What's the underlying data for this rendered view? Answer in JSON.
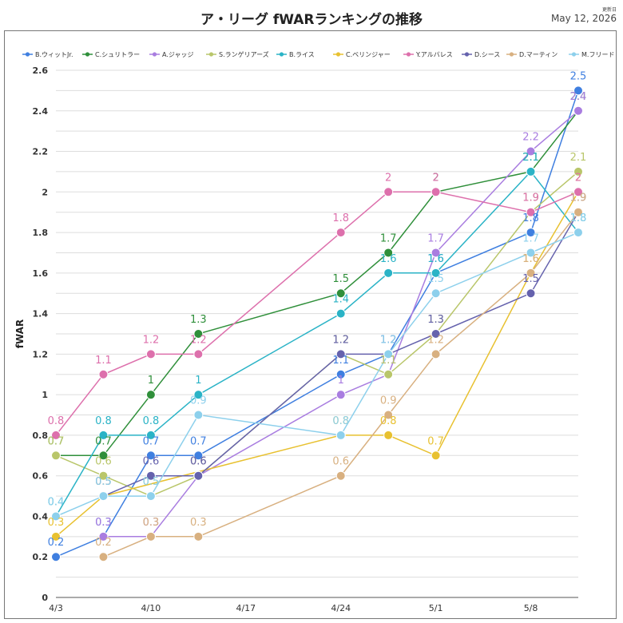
{
  "header": {
    "title": "ア・リーグ fWARランキングの推移",
    "updated_label": "更新日",
    "updated_date": "May 12, 2026"
  },
  "chart_data": {
    "type": "line",
    "title": "ア・リーグ fWARランキングの推移",
    "xlabel": "",
    "ylabel": "fWAR",
    "x": [
      "4/3",
      "4/6",
      "4/10",
      "4/13",
      "4/17",
      "4/20",
      "4/24",
      "4/27",
      "5/1",
      "5/4",
      "5/8",
      "5/11"
    ],
    "x_tick_labels": [
      "4/3",
      "4/10",
      "4/17",
      "4/24",
      "5/1",
      "5/8"
    ],
    "y_ticks": [
      0,
      0.2,
      0.4,
      0.6,
      0.8,
      1,
      1.2,
      1.4,
      1.6,
      1.8,
      2,
      2.2,
      2.4,
      2.6
    ],
    "ylim": [
      0,
      2.6
    ],
    "grid": true,
    "legend_position": "top",
    "series": [
      {
        "name": "B.ウィットJr.",
        "color": "#3f7fe0",
        "values": [
          0.2,
          0.3,
          0.7,
          0.7,
          null,
          null,
          1.1,
          1.2,
          1.6,
          null,
          1.8,
          2.5
        ]
      },
      {
        "name": "C.シュリトラー",
        "color": "#2f8f3a",
        "values": [
          0.7,
          0.7,
          1,
          1.3,
          null,
          null,
          1.5,
          1.7,
          2,
          null,
          2.1,
          2.4
        ]
      },
      {
        "name": "A.ジャッジ",
        "color": "#a97de0",
        "values": [
          null,
          0.3,
          0.3,
          0.6,
          null,
          null,
          1.0,
          1.1,
          1.7,
          null,
          2.2,
          2.4
        ]
      },
      {
        "name": "S.ランゲリアーズ",
        "color": "#b9c66a",
        "values": [
          0.7,
          0.6,
          0.5,
          0.6,
          null,
          null,
          1.2,
          1.1,
          1.3,
          null,
          1.9,
          2.1
        ]
      },
      {
        "name": "B.ライス",
        "color": "#2ab3c6",
        "values": [
          0.4,
          0.8,
          0.8,
          1,
          null,
          null,
          1.4,
          1.6,
          1.6,
          null,
          2.1,
          1.8
        ]
      },
      {
        "name": "C.ベリンジャー",
        "color": "#e8c130",
        "values": [
          0.3,
          0.5,
          null,
          null,
          null,
          null,
          0.8,
          0.8,
          0.7,
          null,
          1.6,
          2
        ]
      },
      {
        "name": "Y.アルバレス",
        "color": "#dd70ac",
        "values": [
          0.8,
          1.1,
          1.2,
          1.2,
          null,
          null,
          1.8,
          2,
          2,
          null,
          1.9,
          2
        ]
      },
      {
        "name": "D.シース",
        "color": "#6562ad",
        "values": [
          null,
          0.5,
          0.6,
          0.6,
          null,
          null,
          1.2,
          1.2,
          1.3,
          null,
          1.5,
          1.9
        ]
      },
      {
        "name": "D.マーティン",
        "color": "#d8b080",
        "values": [
          null,
          0.2,
          0.3,
          0.3,
          null,
          null,
          0.6,
          0.9,
          1.2,
          null,
          1.6,
          1.9
        ]
      },
      {
        "name": "M.フリード",
        "color": "#8dd0ec",
        "values": [
          0.4,
          0.5,
          0.5,
          0.9,
          null,
          null,
          0.8,
          1.2,
          1.5,
          null,
          1.7,
          1.8
        ]
      }
    ]
  }
}
